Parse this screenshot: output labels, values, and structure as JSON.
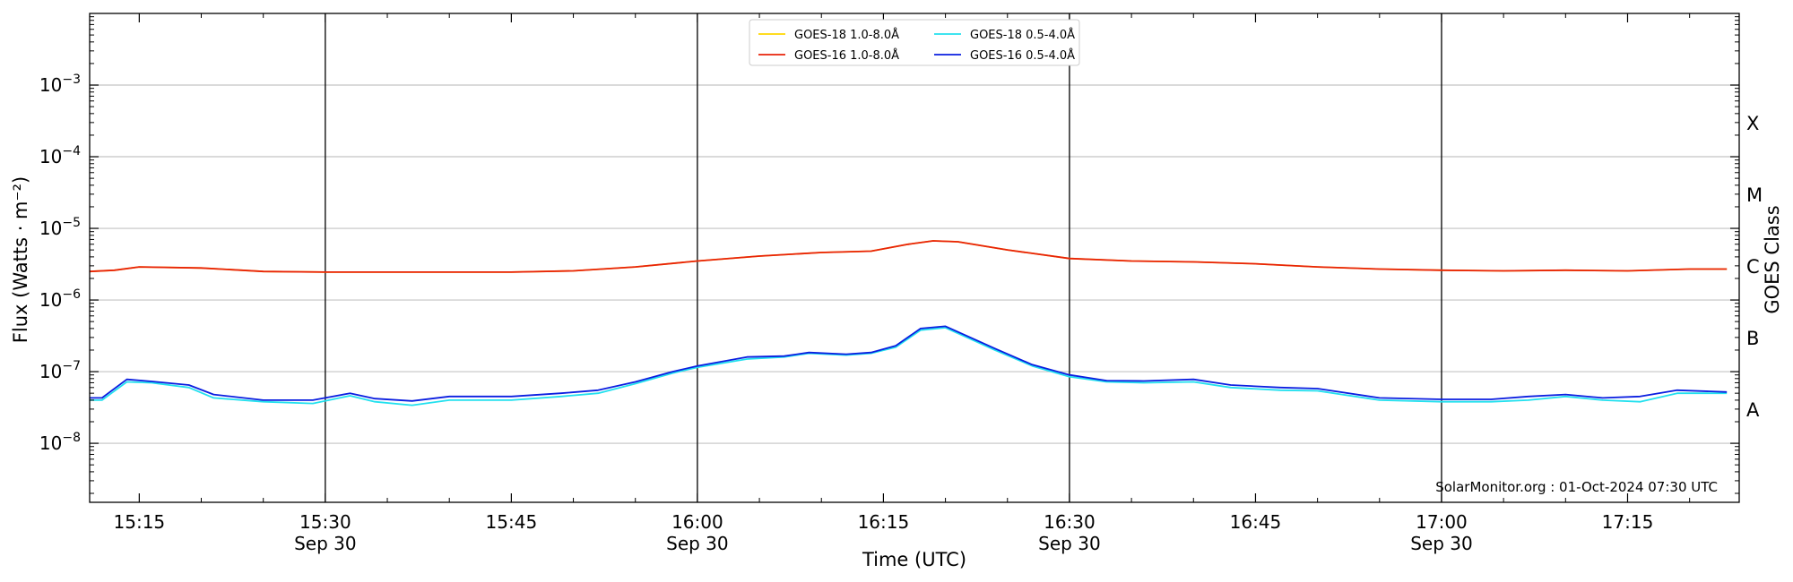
{
  "chart_data": {
    "type": "line",
    "xlabel": "Time (UTC)",
    "ylabel": "Flux (Watts · m⁻²)",
    "right_ylabel": "GOES Class",
    "credit": "SolarMonitor.org : 01-Oct-2024 07:30 UTC",
    "scale": "log",
    "ylim": [
      1.5e-09,
      0.01
    ],
    "xlim": [
      "15:11",
      "17:24"
    ],
    "grid": "horizontal at decades",
    "legend_position": "top-center",
    "x_ticks": [
      {
        "time": "15:15",
        "label": "15:15",
        "date": ""
      },
      {
        "time": "15:30",
        "label": "15:30",
        "date": "Sep 30"
      },
      {
        "time": "15:45",
        "label": "15:45",
        "date": ""
      },
      {
        "time": "16:00",
        "label": "16:00",
        "date": "Sep 30"
      },
      {
        "time": "16:15",
        "label": "16:15",
        "date": ""
      },
      {
        "time": "16:30",
        "label": "16:30",
        "date": "Sep 30"
      },
      {
        "time": "16:45",
        "label": "16:45",
        "date": ""
      },
      {
        "time": "17:00",
        "label": "17:00",
        "date": "Sep 30"
      },
      {
        "time": "17:15",
        "label": "17:15",
        "date": ""
      }
    ],
    "vertical_lines": [
      "15:30",
      "16:00",
      "16:30",
      "17:00"
    ],
    "y_ticks": [
      {
        "value": 1e-08,
        "base": "10",
        "exp": "−8"
      },
      {
        "value": 1e-07,
        "base": "10",
        "exp": "−7"
      },
      {
        "value": 1e-06,
        "base": "10",
        "exp": "−6"
      },
      {
        "value": 1e-05,
        "base": "10",
        "exp": "−5"
      },
      {
        "value": 0.0001,
        "base": "10",
        "exp": "−4"
      },
      {
        "value": 0.001,
        "base": "10",
        "exp": "−3"
      }
    ],
    "goes_classes": [
      {
        "label": "A",
        "value": 3e-08
      },
      {
        "label": "B",
        "value": 3e-07
      },
      {
        "label": "C",
        "value": 3e-06
      },
      {
        "label": "M",
        "value": 3e-05
      },
      {
        "label": "X",
        "value": 0.0003
      }
    ],
    "series": [
      {
        "name": "GOES-18 1.0-8.0Å",
        "color": "#ffd700",
        "x": [
          "15:11",
          "15:13",
          "15:15",
          "15:20",
          "15:25",
          "15:30",
          "15:35",
          "15:40",
          "15:45",
          "15:50",
          "15:55",
          "16:00",
          "16:05",
          "16:10",
          "16:14",
          "16:17",
          "16:19",
          "16:21",
          "16:25",
          "16:30",
          "16:35",
          "16:40",
          "16:45",
          "16:50",
          "16:55",
          "17:00",
          "17:05",
          "17:10",
          "17:15",
          "17:20",
          "17:23"
        ],
        "values": [
          2.5e-06,
          2.6e-06,
          2.9e-06,
          2.8e-06,
          2.5e-06,
          2.45e-06,
          2.45e-06,
          2.45e-06,
          2.45e-06,
          2.55e-06,
          2.9e-06,
          3.5e-06,
          4.1e-06,
          4.6e-06,
          4.8e-06,
          6e-06,
          6.7e-06,
          6.5e-06,
          5e-06,
          3.8e-06,
          3.5e-06,
          3.4e-06,
          3.2e-06,
          2.9e-06,
          2.7e-06,
          2.6e-06,
          2.55e-06,
          2.6e-06,
          2.55e-06,
          2.7e-06,
          2.7e-06
        ]
      },
      {
        "name": "GOES-16 1.0-8.0Å",
        "color": "#e8220a",
        "x": [
          "15:11",
          "15:13",
          "15:15",
          "15:20",
          "15:25",
          "15:30",
          "15:35",
          "15:40",
          "15:45",
          "15:50",
          "15:55",
          "16:00",
          "16:05",
          "16:10",
          "16:14",
          "16:17",
          "16:19",
          "16:21",
          "16:25",
          "16:30",
          "16:35",
          "16:40",
          "16:45",
          "16:50",
          "16:55",
          "17:00",
          "17:05",
          "17:10",
          "17:15",
          "17:20",
          "17:23"
        ],
        "values": [
          2.5e-06,
          2.6e-06,
          2.9e-06,
          2.8e-06,
          2.5e-06,
          2.45e-06,
          2.45e-06,
          2.45e-06,
          2.45e-06,
          2.55e-06,
          2.9e-06,
          3.5e-06,
          4.1e-06,
          4.6e-06,
          4.8e-06,
          6e-06,
          6.7e-06,
          6.5e-06,
          5e-06,
          3.8e-06,
          3.5e-06,
          3.4e-06,
          3.2e-06,
          2.9e-06,
          2.7e-06,
          2.6e-06,
          2.55e-06,
          2.6e-06,
          2.55e-06,
          2.7e-06,
          2.7e-06
        ]
      },
      {
        "name": "GOES-18 0.5-4.0Å",
        "color": "#22e0ee",
        "x": [
          "15:11",
          "15:12",
          "15:14",
          "15:16",
          "15:19",
          "15:21",
          "15:25",
          "15:29",
          "15:32",
          "15:34",
          "15:37",
          "15:40",
          "15:45",
          "15:49",
          "15:52",
          "15:55",
          "15:58",
          "16:00",
          "16:04",
          "16:07",
          "16:09",
          "16:12",
          "16:14",
          "16:16",
          "16:18",
          "16:20",
          "16:24",
          "16:27",
          "16:30",
          "16:33",
          "16:36",
          "16:40",
          "16:43",
          "16:47",
          "16:50",
          "16:55",
          "17:00",
          "17:04",
          "17:07",
          "17:10",
          "17:13",
          "17:16",
          "17:19",
          "17:23"
        ],
        "values": [
          4e-08,
          4e-08,
          7.2e-08,
          7e-08,
          6e-08,
          4.3e-08,
          3.8e-08,
          3.6e-08,
          4.6e-08,
          3.8e-08,
          3.4e-08,
          4e-08,
          4e-08,
          4.5e-08,
          5e-08,
          6.8e-08,
          9.5e-08,
          1.15e-07,
          1.5e-07,
          1.6e-07,
          1.8e-07,
          1.7e-07,
          1.8e-07,
          2.2e-07,
          3.8e-07,
          4.1e-07,
          2e-07,
          1.2e-07,
          8.5e-08,
          7.2e-08,
          7e-08,
          7.2e-08,
          6e-08,
          5.5e-08,
          5.4e-08,
          4e-08,
          3.8e-08,
          3.8e-08,
          4e-08,
          4.5e-08,
          4e-08,
          3.8e-08,
          5e-08,
          5e-08
        ]
      },
      {
        "name": "GOES-16 0.5-4.0Å",
        "color": "#0a1ee0",
        "x": [
          "15:11",
          "15:12",
          "15:14",
          "15:16",
          "15:19",
          "15:21",
          "15:25",
          "15:29",
          "15:32",
          "15:34",
          "15:37",
          "15:40",
          "15:45",
          "15:49",
          "15:52",
          "15:55",
          "15:58",
          "16:00",
          "16:04",
          "16:07",
          "16:09",
          "16:12",
          "16:14",
          "16:16",
          "16:18",
          "16:20",
          "16:24",
          "16:27",
          "16:30",
          "16:33",
          "16:36",
          "16:40",
          "16:43",
          "16:47",
          "16:50",
          "16:55",
          "17:00",
          "17:04",
          "17:07",
          "17:10",
          "17:13",
          "17:16",
          "17:19",
          "17:23"
        ],
        "values": [
          4.3e-08,
          4.3e-08,
          7.8e-08,
          7.3e-08,
          6.5e-08,
          4.8e-08,
          4e-08,
          4e-08,
          5e-08,
          4.2e-08,
          3.9e-08,
          4.5e-08,
          4.5e-08,
          5e-08,
          5.5e-08,
          7.2e-08,
          1e-07,
          1.2e-07,
          1.6e-07,
          1.65e-07,
          1.85e-07,
          1.75e-07,
          1.85e-07,
          2.3e-07,
          4e-07,
          4.3e-07,
          2.1e-07,
          1.25e-07,
          9e-08,
          7.5e-08,
          7.4e-08,
          7.8e-08,
          6.5e-08,
          6e-08,
          5.8e-08,
          4.3e-08,
          4.1e-08,
          4.1e-08,
          4.5e-08,
          4.8e-08,
          4.3e-08,
          4.5e-08,
          5.5e-08,
          5.2e-08
        ]
      }
    ]
  }
}
